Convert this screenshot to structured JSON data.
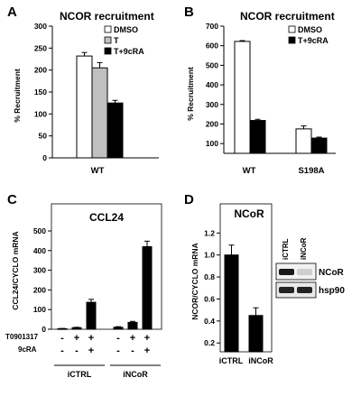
{
  "chart_data": [
    {
      "panel": "A",
      "type": "bar",
      "title": "NCOR recruitment",
      "ylabel": "% Recruitment",
      "ylim": [
        0,
        300
      ],
      "yticks": [
        0,
        50,
        100,
        150,
        200,
        250,
        300
      ],
      "categories": [
        "WT"
      ],
      "legend_position": "top-right",
      "series": [
        {
          "name": "DMSO",
          "color": "#ffffff",
          "values": [
            232
          ],
          "errors": [
            8
          ]
        },
        {
          "name": "T",
          "color": "#c0c0c0",
          "values": [
            205
          ],
          "errors": [
            12
          ]
        },
        {
          "name": "T+9cRA",
          "color": "#000000",
          "values": [
            125
          ],
          "errors": [
            6
          ]
        }
      ]
    },
    {
      "panel": "B",
      "type": "bar",
      "title": "NCOR recruitment",
      "ylabel": "% Recruitment",
      "ylim": [
        50,
        700
      ],
      "yticks": [
        100,
        200,
        300,
        400,
        500,
        600,
        700
      ],
      "categories": [
        "WT",
        "S198A"
      ],
      "legend_position": "top-right",
      "series": [
        {
          "name": "DMSO",
          "color": "#ffffff",
          "values": [
            622,
            175
          ],
          "errors": [
            4,
            15
          ]
        },
        {
          "name": "T+9cRA",
          "color": "#000000",
          "values": [
            218,
            128
          ],
          "errors": [
            6,
            5
          ]
        }
      ]
    },
    {
      "panel": "C",
      "type": "bar",
      "title": "CCL24",
      "ylabel": "CCL24/CYCLO mRNA",
      "ylim": [
        0,
        500
      ],
      "yticks": [
        0,
        100,
        200,
        300,
        400,
        500
      ],
      "row_labels": [
        "T0901317",
        "9cRA"
      ],
      "groups": [
        {
          "label": "iCTRL",
          "bars": [
            {
              "value": 3,
              "error": 1,
              "T0901317": "-",
              "9cRA": "-"
            },
            {
              "value": 8,
              "error": 2,
              "T0901317": "+",
              "9cRA": "-"
            },
            {
              "value": 137,
              "error": 15,
              "T0901317": "+",
              "9cRA": "+"
            }
          ]
        },
        {
          "label": "iNCoR",
          "bars": [
            {
              "value": 10,
              "error": 3,
              "T0901317": "-",
              "9cRA": "-"
            },
            {
              "value": 35,
              "error": 5,
              "T0901317": "+",
              "9cRA": "-"
            },
            {
              "value": 420,
              "error": 28,
              "T0901317": "+",
              "9cRA": "+"
            }
          ]
        }
      ]
    },
    {
      "panel": "D",
      "type": "bar",
      "title": "NCoR",
      "ylabel": "NCOR/CYCLO mRNA",
      "ylim": [
        0.12,
        1.35
      ],
      "yticks": [
        0.2,
        0.4,
        0.6,
        0.8,
        1.0,
        1.2
      ],
      "ytick_labels": [
        "0.2",
        "0.4",
        "0.6",
        "0.8",
        "1.0",
        "1.2"
      ],
      "categories": [
        "iCTRL",
        "iNCoR"
      ],
      "values": [
        1.0,
        0.45
      ],
      "errors": [
        0.09,
        0.07
      ],
      "blot": {
        "lanes": [
          "iCTRL",
          "iNCoR"
        ],
        "rows": [
          {
            "label": "NCoR",
            "intensities": [
              0.9,
              0.15
            ]
          },
          {
            "label": "hsp90",
            "intensities": [
              0.85,
              0.85
            ]
          }
        ]
      }
    }
  ]
}
